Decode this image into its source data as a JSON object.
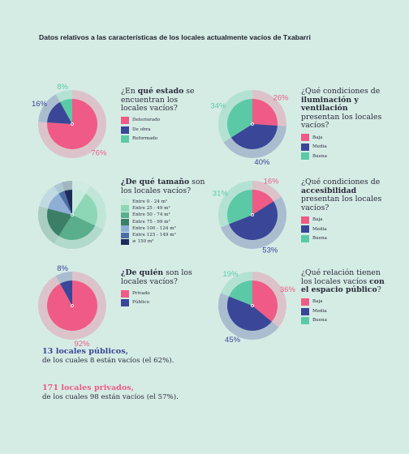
{
  "title": "Datos relativos a las características de los locales  actualmente vacíos de Txabarri",
  "chart_data": [
    {
      "type": "pie",
      "title": [
        {
          "text": "¿En ",
          "bold": false
        },
        {
          "text": "qué estado",
          "bold": true
        },
        {
          "text": " se encuentran los locales vacíos?",
          "bold": false
        }
      ],
      "categories": [
        "Deteriorado",
        "De obra",
        "Reformado"
      ],
      "values": [
        76,
        16,
        8
      ],
      "value_labels": [
        "76%",
        "16%",
        "8%"
      ],
      "colors": [
        "#ef5b86",
        "#3a4697",
        "#5cc9a6"
      ]
    },
    {
      "type": "pie",
      "title": [
        {
          "text": "¿Qué condiciones de ",
          "bold": false
        },
        {
          "text": "iluminación y ventilación",
          "bold": true
        },
        {
          "text": " presentan los locales vacíos?",
          "bold": false
        }
      ],
      "categories": [
        "Baja",
        "Media",
        "Buena"
      ],
      "values": [
        26,
        40,
        34
      ],
      "value_labels": [
        "26%",
        "40%",
        "34%"
      ],
      "colors": [
        "#ef5b86",
        "#3a4697",
        "#5cc9a6"
      ]
    },
    {
      "type": "pie",
      "title": [
        {
          "text": "¿De qué tamaño",
          "bold": true
        },
        {
          "text": " son los locales vacíos?",
          "bold": false
        }
      ],
      "categories": [
        "Entre 0 - 24 m²",
        "Entre 25 - 49 m²",
        "Entre 50 - 74 m²",
        "Entre 75 - 99 m²",
        "Entre 100 - 124 m²",
        "Entre 125 - 149 m²",
        "≥ 150 m²"
      ],
      "values": [
        9,
        23,
        27,
        20,
        12,
        4,
        5
      ],
      "colors": [
        "#c6eadb",
        "#8dd6b6",
        "#5bae8b",
        "#3c7f67",
        "#8eaed6",
        "#4c6ea6",
        "#1e2a5a"
      ]
    },
    {
      "type": "pie",
      "title": [
        {
          "text": "¿Qué condiciones de ",
          "bold": false
        },
        {
          "text": "accesibilidad",
          "bold": true
        },
        {
          "text": " presentan los locales vacíos?",
          "bold": false
        }
      ],
      "categories": [
        "Baja",
        "Media",
        "Buena"
      ],
      "values": [
        16,
        53,
        31
      ],
      "value_labels": [
        "16%",
        "53%",
        "31%"
      ],
      "colors": [
        "#ef5b86",
        "#3a4697",
        "#5cc9a6"
      ]
    },
    {
      "type": "pie",
      "title": [
        {
          "text": "¿De quién",
          "bold": true
        },
        {
          "text": " son los locales vacíos?",
          "bold": false
        }
      ],
      "categories": [
        "Privado",
        "Público"
      ],
      "values": [
        92,
        8
      ],
      "value_labels": [
        "92%",
        "8%"
      ],
      "colors": [
        "#ef5b86",
        "#3a4697"
      ]
    },
    {
      "type": "pie",
      "title": [
        {
          "text": "¿Qué relación tienen los locales vacíos ",
          "bold": false
        },
        {
          "text": "con el espacio público",
          "bold": true
        },
        {
          "text": "?",
          "bold": false
        }
      ],
      "categories": [
        "Baja",
        "Media",
        "Buena"
      ],
      "values": [
        36,
        45,
        19
      ],
      "value_labels": [
        "36%",
        "45%",
        "19%"
      ],
      "colors": [
        "#ef5b86",
        "#3a4697",
        "#5cc9a6"
      ]
    }
  ],
  "notes": [
    {
      "headline": "13 locales públicos,",
      "text": "de los cuales 8 están vacíos (el 62%).",
      "color": "#3a4697"
    },
    {
      "headline": "171 locales privados,",
      "text": "de los cuales  98 están vacíos (el 57%).",
      "color": "#ef5b86"
    }
  ]
}
